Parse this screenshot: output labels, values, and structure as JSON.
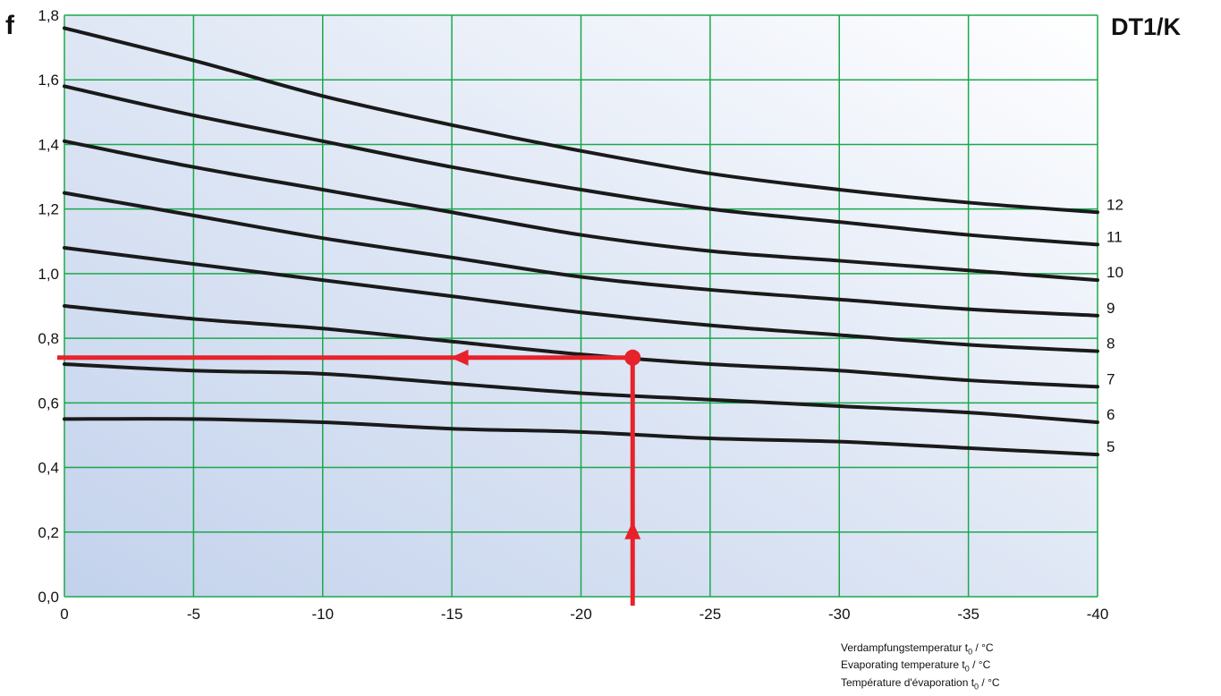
{
  "chart_data": {
    "type": "line",
    "ylabel": "f",
    "legend_title": "DT1/K",
    "x_axis": {
      "range": [
        0,
        -40
      ],
      "ticks": [
        0,
        -5,
        -10,
        -15,
        -20,
        -25,
        -30,
        -35,
        -40
      ],
      "tick_labels": [
        "0",
        "-5",
        "-10",
        "-15",
        "-20",
        "-25",
        "-30",
        "-35",
        "-40"
      ],
      "captions": [
        {
          "text": "Verdampfungstemperatur t",
          "sub": "0",
          "unit": " / °C"
        },
        {
          "text": "Evaporating temperature t",
          "sub": "0",
          "unit": " / °C"
        },
        {
          "text": "Température d'évaporation t",
          "sub": "0",
          "unit": " / °C"
        }
      ]
    },
    "y_axis": {
      "range": [
        0,
        1.8
      ],
      "ticks": [
        0,
        0.2,
        0.4,
        0.6,
        0.8,
        1.0,
        1.2,
        1.4,
        1.6,
        1.8
      ],
      "tick_labels": [
        "0,0",
        "0,2",
        "0,4",
        "0,6",
        "0,8",
        "1,0",
        "1,2",
        "1,4",
        "1,6",
        "1,8"
      ]
    },
    "grid": true,
    "x": [
      0,
      -5,
      -10,
      -15,
      -20,
      -25,
      -30,
      -35,
      -40
    ],
    "series": [
      {
        "name": "12",
        "values": [
          1.76,
          1.66,
          1.55,
          1.46,
          1.38,
          1.31,
          1.26,
          1.22,
          1.19
        ]
      },
      {
        "name": "11",
        "values": [
          1.58,
          1.49,
          1.41,
          1.33,
          1.26,
          1.2,
          1.16,
          1.12,
          1.09
        ]
      },
      {
        "name": "10",
        "values": [
          1.41,
          1.33,
          1.26,
          1.19,
          1.12,
          1.07,
          1.04,
          1.01,
          0.98
        ]
      },
      {
        "name": "9",
        "values": [
          1.25,
          1.18,
          1.11,
          1.05,
          0.99,
          0.95,
          0.92,
          0.89,
          0.87
        ]
      },
      {
        "name": "8",
        "values": [
          1.08,
          1.03,
          0.98,
          0.93,
          0.88,
          0.84,
          0.81,
          0.78,
          0.76
        ]
      },
      {
        "name": "7",
        "values": [
          0.9,
          0.86,
          0.83,
          0.79,
          0.75,
          0.72,
          0.7,
          0.67,
          0.65
        ]
      },
      {
        "name": "6",
        "values": [
          0.72,
          0.7,
          0.69,
          0.66,
          0.63,
          0.61,
          0.59,
          0.57,
          0.54
        ]
      },
      {
        "name": "5",
        "values": [
          0.55,
          0.55,
          0.54,
          0.52,
          0.51,
          0.49,
          0.48,
          0.46,
          0.44
        ]
      }
    ],
    "example_reading": {
      "x": -22,
      "y": 0.74,
      "color": "#e8222a"
    },
    "colors": {
      "grid": "#1aa84a",
      "curve": "#1a1a1a",
      "background_start": "#c3d2ec",
      "background_end": "#ffffff"
    }
  }
}
